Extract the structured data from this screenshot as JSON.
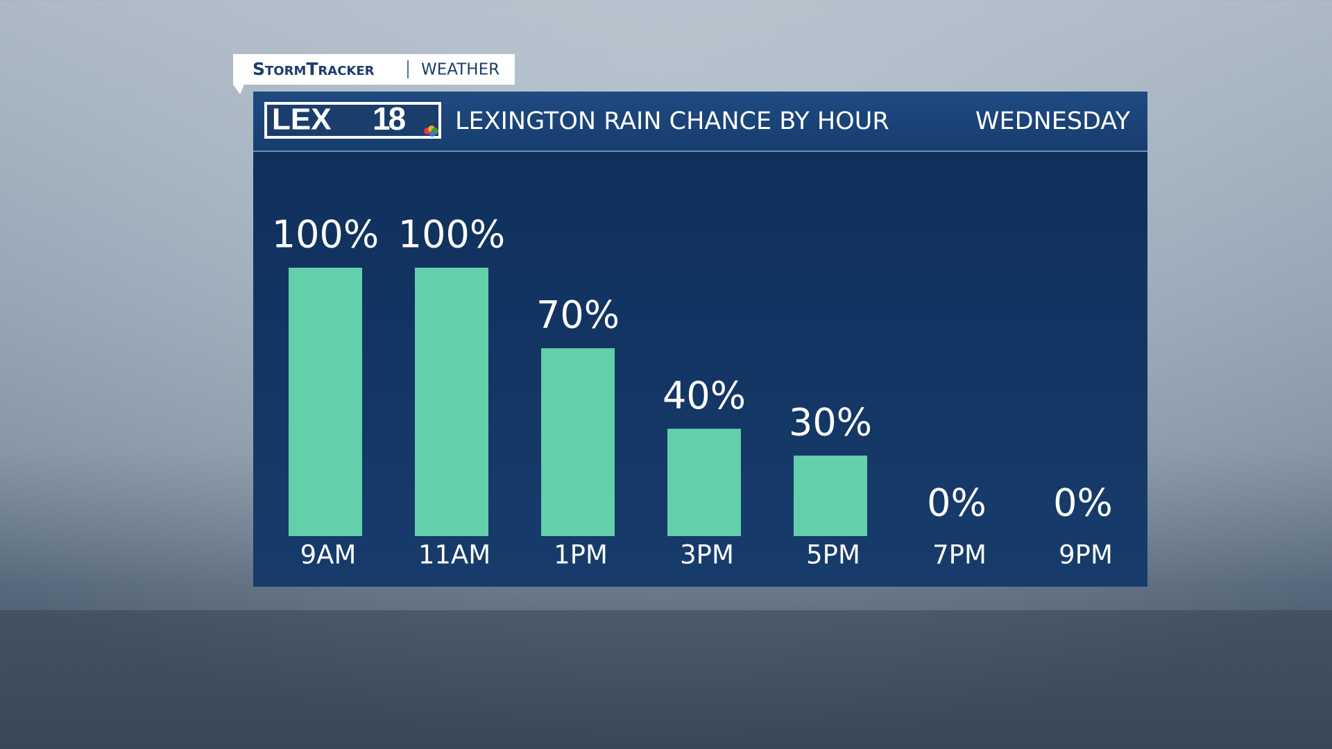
{
  "brand": {
    "name": "StormTracker",
    "section": "WEATHER",
    "logo": "LEX",
    "logo_number": "18"
  },
  "chart_data": {
    "type": "bar",
    "title": "LEXINGTON RAIN CHANCE BY HOUR",
    "subtitle": "WEDNESDAY",
    "categories": [
      "9AM",
      "11AM",
      "1PM",
      "3PM",
      "5PM",
      "7PM",
      "9PM"
    ],
    "values": [
      100,
      100,
      70,
      40,
      30,
      0,
      0
    ],
    "value_labels": [
      "100%",
      "100%",
      "70%",
      "40%",
      "30%",
      "0%",
      "0%"
    ],
    "color": "#63cfab",
    "ylim": [
      0,
      100
    ]
  }
}
